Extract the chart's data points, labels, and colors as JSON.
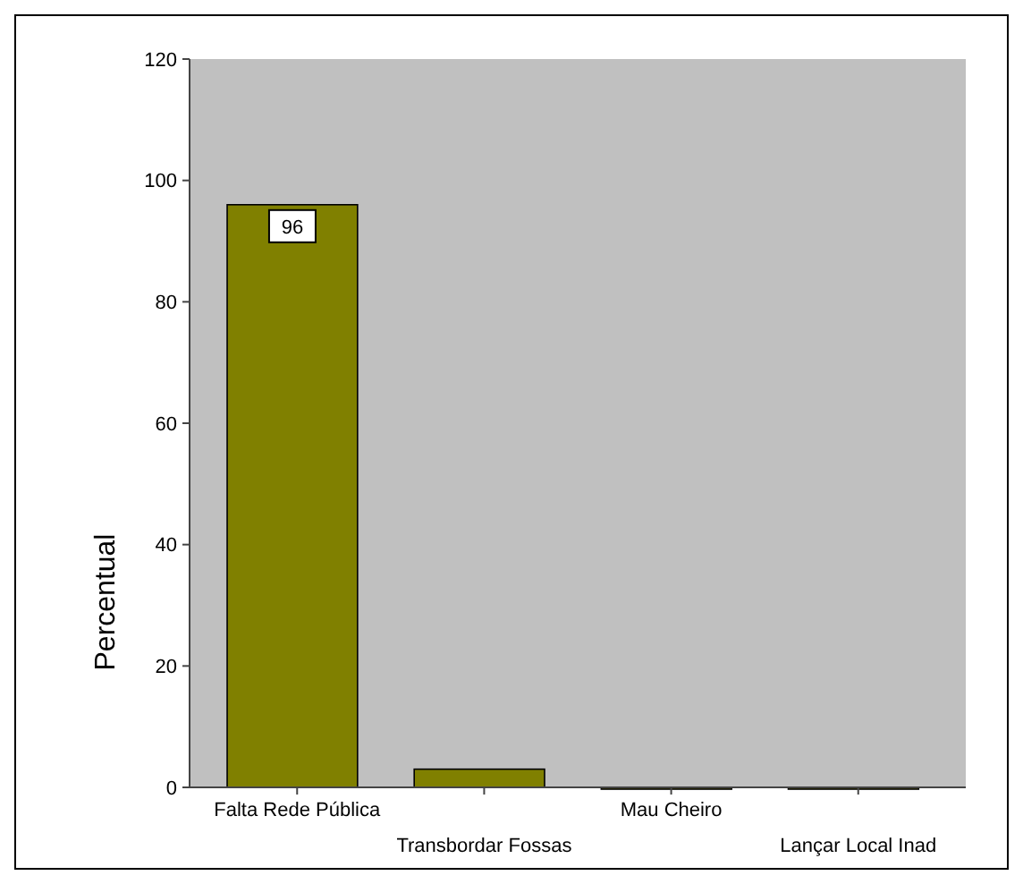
{
  "chart_data": {
    "type": "bar",
    "ylabel": "Percentual",
    "categories": [
      "Falta Rede Pública",
      "Transbordar Fossas",
      "Mau Cheiro",
      "Lançar Local Inad"
    ],
    "values": [
      96,
      3,
      0,
      0
    ],
    "color": "#808000",
    "value_labels": [
      "96",
      null,
      null,
      null
    ],
    "ylim": [
      0,
      120
    ],
    "yticks": [
      0,
      20,
      40,
      60,
      80,
      100,
      120
    ],
    "grid": false
  }
}
